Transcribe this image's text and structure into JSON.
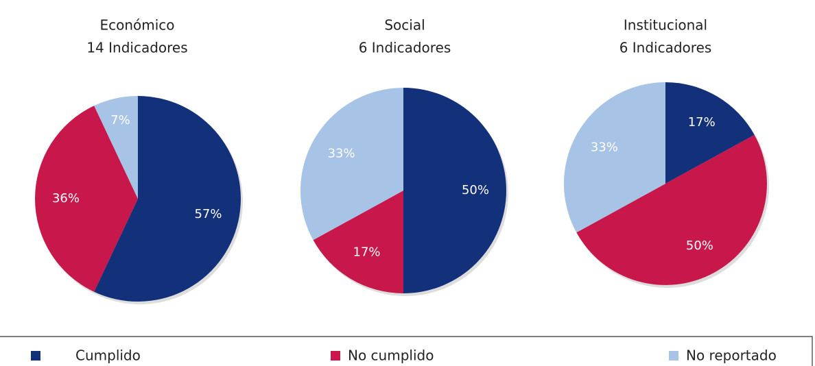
{
  "legend": {
    "labels": [
      "Cumplido",
      "No cumplido",
      "No reportado"
    ],
    "colors": [
      "#13307a",
      "#c8174a",
      "#a7c4e6"
    ]
  },
  "chart_data": [
    {
      "type": "pie",
      "title": "Económico",
      "subtitle": "14 Indicadores",
      "values": [
        57,
        36,
        7
      ],
      "value_labels": [
        "57%",
        "36%",
        "7%"
      ]
    },
    {
      "type": "pie",
      "title": "Social",
      "subtitle": "6 Indicadores",
      "values": [
        50,
        17,
        33
      ],
      "value_labels": [
        "50%",
        "17%",
        "33%"
      ]
    },
    {
      "type": "pie",
      "title": "Institucional",
      "subtitle": "6 Indicadores",
      "values": [
        17,
        50,
        33
      ],
      "value_labels": [
        "17%",
        "50%",
        "33%"
      ]
    }
  ]
}
